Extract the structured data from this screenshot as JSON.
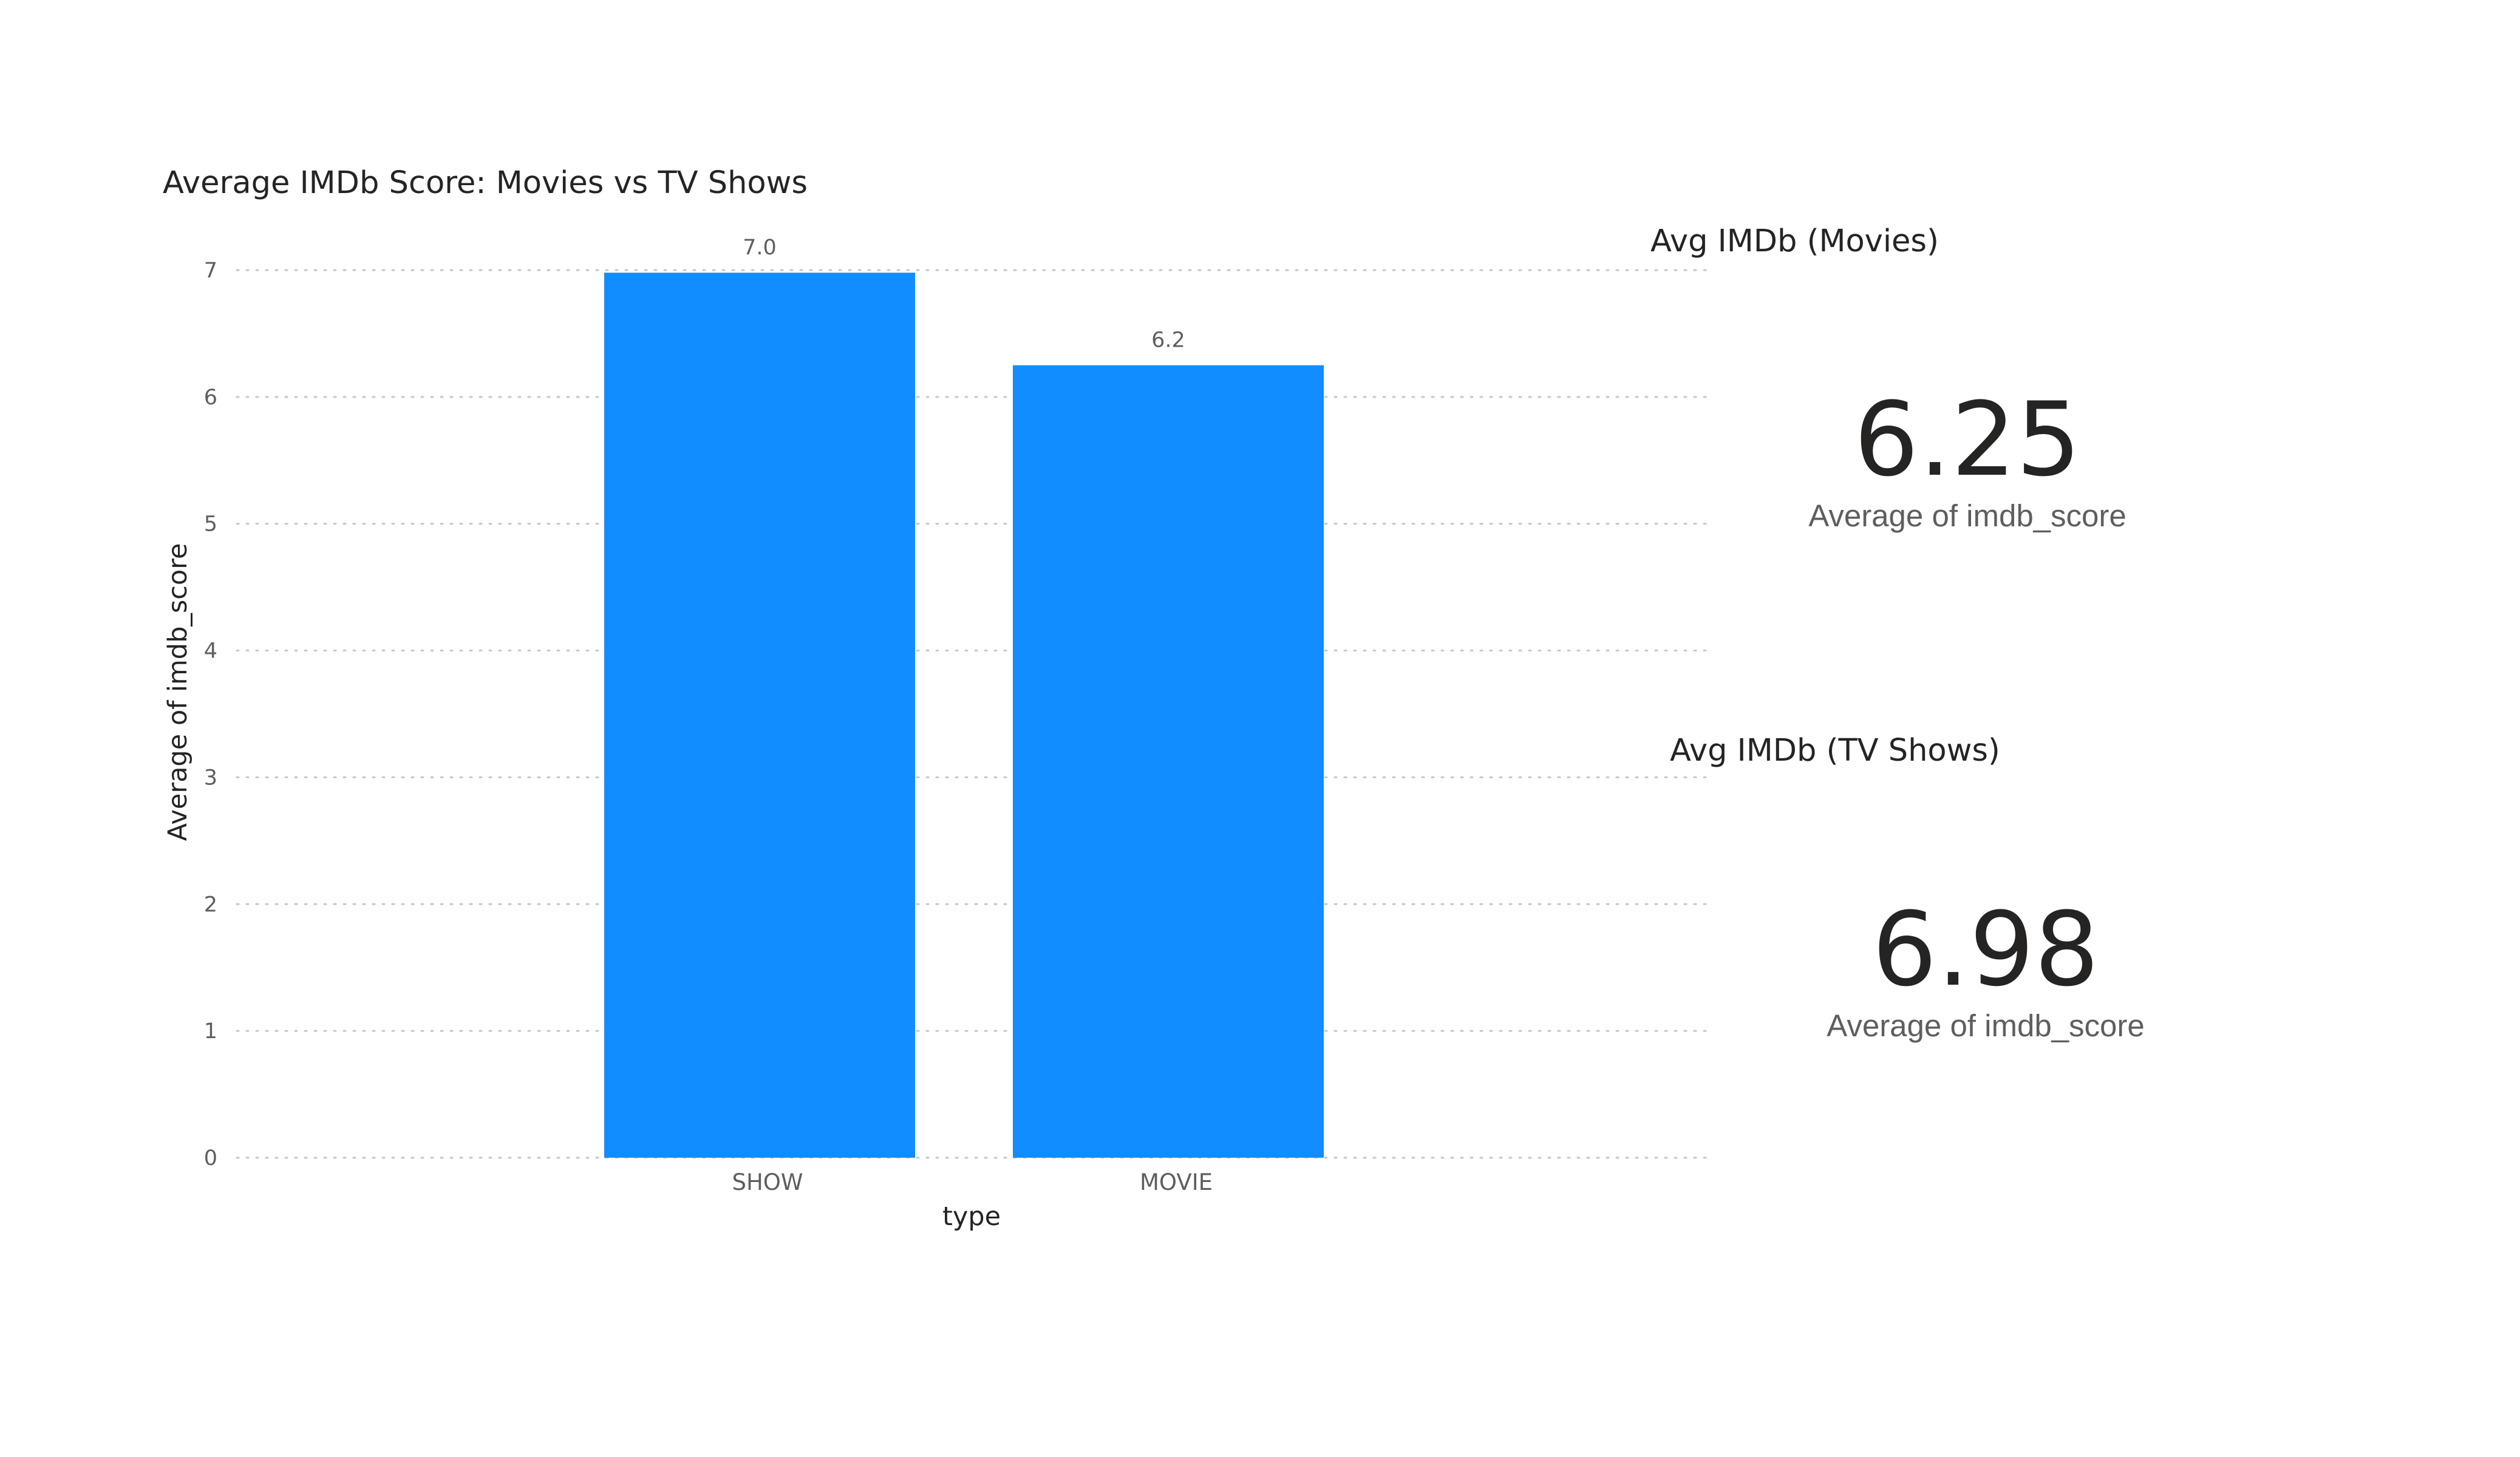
{
  "chart_data": {
    "type": "bar",
    "title": "Average IMDb Score: Movies vs TV Shows",
    "xlabel": "type",
    "ylabel": "Average of imdb_score",
    "categories": [
      "SHOW",
      "MOVIE"
    ],
    "values": [
      6.98,
      6.25
    ],
    "data_labels": [
      "7.0",
      "6.2"
    ],
    "yticks": [
      "0",
      "1",
      "2",
      "3",
      "4",
      "5",
      "6",
      "7"
    ],
    "ylim": [
      0,
      7
    ],
    "grid": true,
    "bar_color": "#118DFF"
  },
  "cards": {
    "movies": {
      "title": "Avg IMDb (Movies)",
      "value": "6.25",
      "label": "Average of imdb_score"
    },
    "shows": {
      "title": "Avg IMDb (TV Shows)",
      "value": "6.98",
      "label": "Average of imdb_score"
    }
  }
}
